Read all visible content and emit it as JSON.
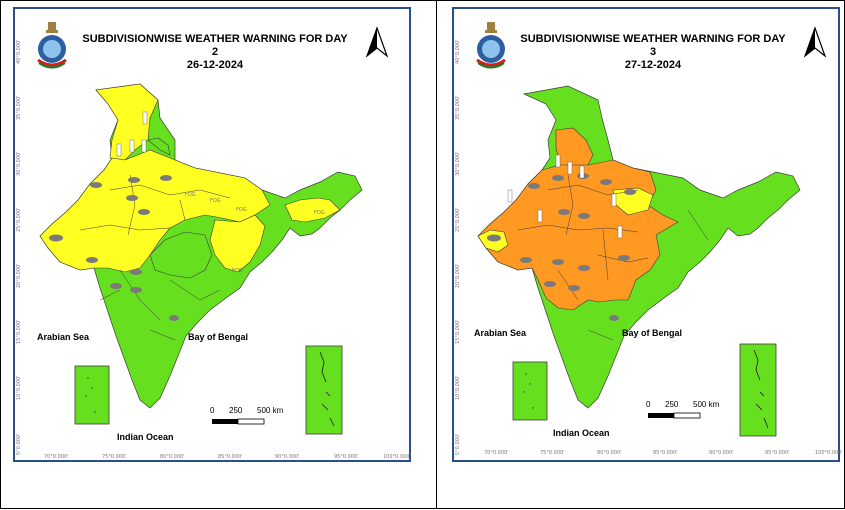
{
  "maps": [
    {
      "title": "SUBDIVISIONWISE WEATHER WARNING FOR DAY 2",
      "date": "26-12-2024",
      "fog_label": "FOG",
      "colors": {
        "land": "#66e01e",
        "yellow": "#ffff22",
        "orange": "#ff9922",
        "border": "#3a3a3a"
      }
    },
    {
      "title": "SUBDIVISIONWISE WEATHER WARNING FOR DAY 3",
      "date": "27-12-2024",
      "colors": {
        "land": "#66e01e",
        "yellow": "#ffff22",
        "orange": "#ff9922",
        "border": "#3a3a3a"
      }
    }
  ],
  "labels": {
    "arabian_sea": "Arabian Sea",
    "bay_of_bengal": "Bay of Bengal",
    "indian_ocean": "Indian Ocean"
  },
  "scalebar": {
    "t0": "0",
    "t1": "250",
    "t2": "500 km"
  },
  "longitudes": [
    "70°0.000'",
    "75°0.000'",
    "80°0.000'",
    "85°0.000'",
    "90°0.000'",
    "95°0.000'",
    "100°0.000'"
  ],
  "latitudes": [
    "40°0.000'",
    "35°0.000'",
    "30°0.000'",
    "25°0.000'",
    "20°0.000'",
    "15°0.000'",
    "10°0.000'",
    "5°0.000'"
  ],
  "icons": {
    "emblem": "imd-emblem-icon",
    "north": "north-arrow-icon",
    "rain": "rain-cloud-icon",
    "snow": "snow-thermometer-icon"
  }
}
